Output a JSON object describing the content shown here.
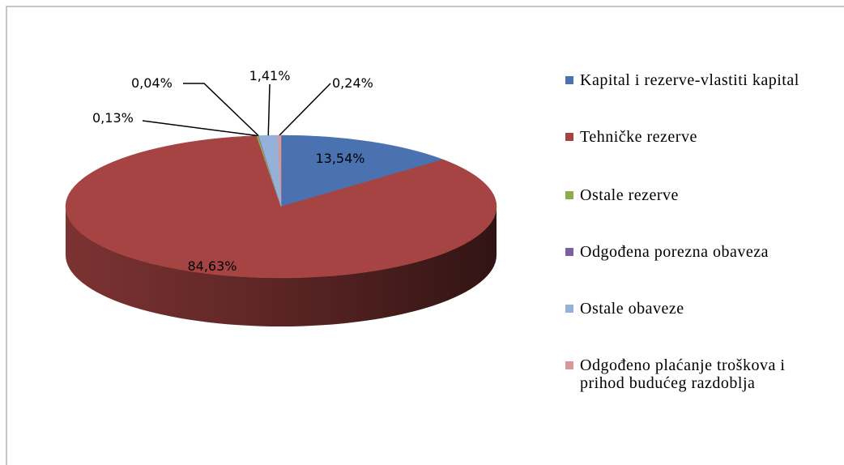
{
  "chart_data": {
    "type": "pie",
    "categories": [
      "Kapital i rezerve-vlastiti kapital",
      "Tehničke rezerve",
      "Ostale rezerve",
      "Odgođena porezna obaveza",
      "Ostale obaveze",
      "Odgođeno plaćanje troškova i prihod budućeg razdoblja"
    ],
    "values": [
      13.54,
      84.63,
      0.13,
      0.04,
      1.41,
      0.24
    ],
    "value_labels": [
      "13,54%",
      "84,63%",
      "0,13%",
      "0,04%",
      "1,41%",
      "0,24%"
    ],
    "colors": [
      "#4a72b0",
      "#a54442",
      "#8cac4f",
      "#7b5fa0",
      "#95b1d9",
      "#d99795"
    ],
    "legend": "right"
  }
}
